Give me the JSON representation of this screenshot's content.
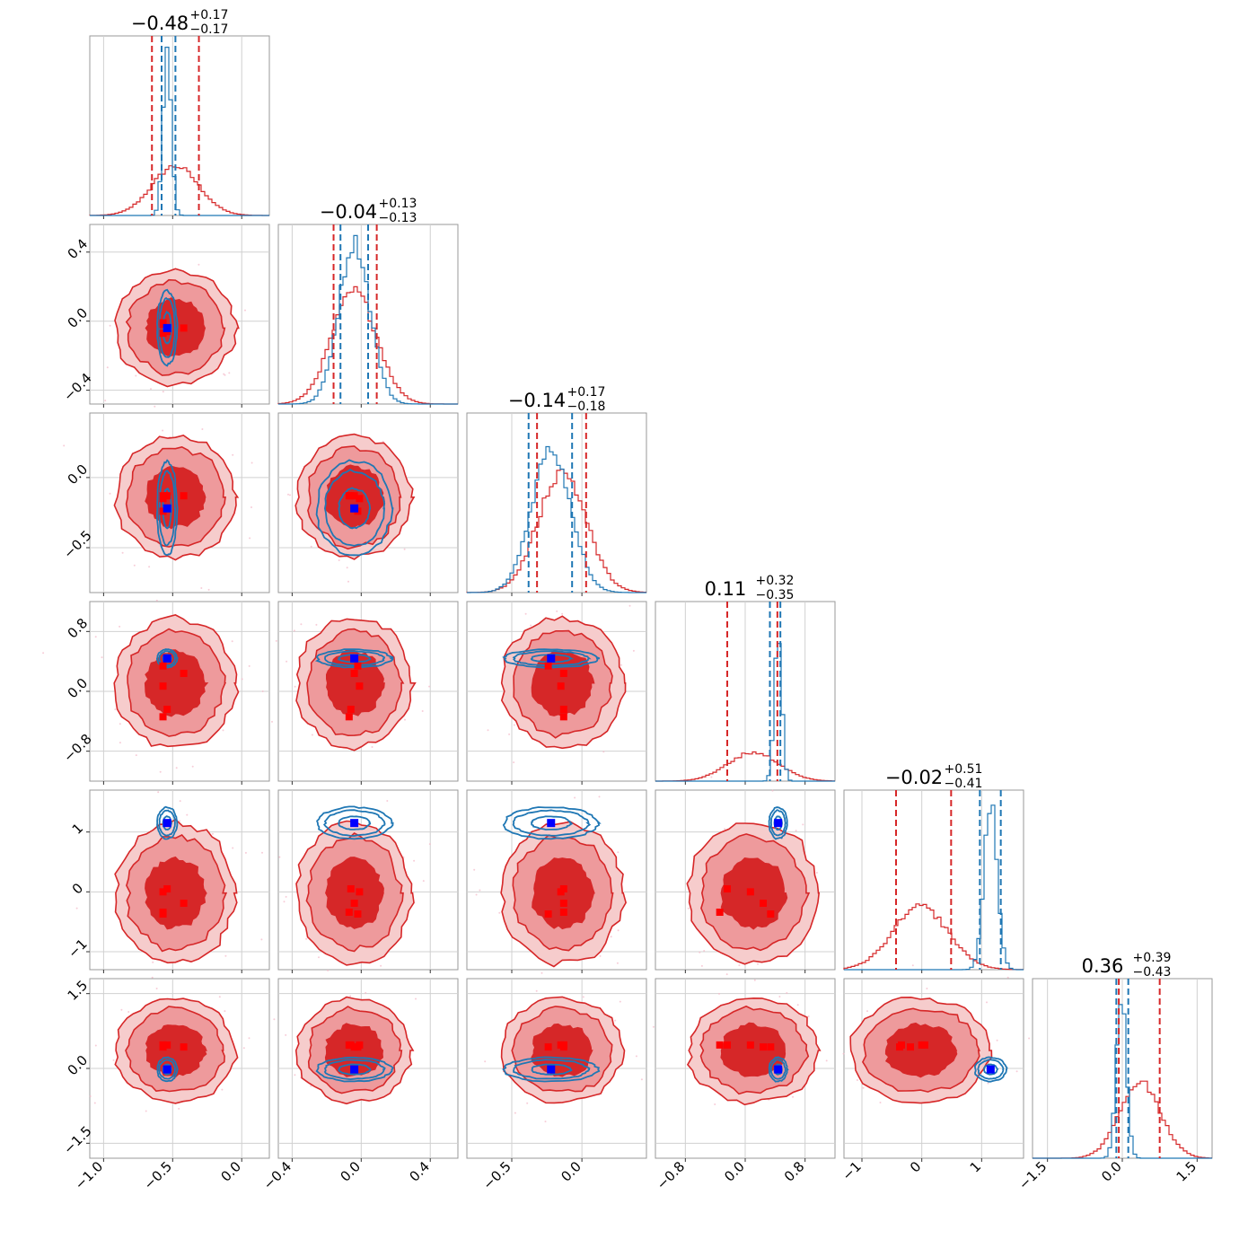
{
  "chart_data": {
    "type": "corner",
    "title": "",
    "n_params": 6,
    "grid": true,
    "colors": {
      "red": "#d62728",
      "red_light": "#ee9a9c",
      "blue": "#1f77b4",
      "marker_red": "#ff0000",
      "marker_blue": "#0000ff"
    },
    "params": [
      {
        "title_main": "−0.48",
        "title_plus": "+0.17",
        "title_minus": "−0.17",
        "range": [
          -1.1,
          0.2
        ],
        "ticks": [
          -1.0,
          -0.5,
          0.0
        ],
        "tick_labels": [
          "−1.0",
          "−0.5",
          "0.0"
        ],
        "red": {
          "mean": -0.48,
          "sd": 0.17
        },
        "blue": {
          "mean": -0.54,
          "sd": 0.03
        },
        "red_quantiles": [
          -0.65,
          -0.31
        ],
        "blue_quantiles": [
          -0.58,
          -0.48
        ]
      },
      {
        "title_main": "−0.04",
        "title_plus": "+0.13",
        "title_minus": "−0.13",
        "range": [
          -0.48,
          0.56
        ],
        "ticks": [
          -0.4,
          0.0,
          0.4
        ],
        "tick_labels": [
          "−0.4",
          "0.0",
          "0.4"
        ],
        "red": {
          "mean": -0.04,
          "sd": 0.13
        },
        "blue": {
          "mean": -0.04,
          "sd": 0.09
        },
        "red_quantiles": [
          -0.16,
          0.09
        ],
        "blue_quantiles": [
          -0.12,
          0.04
        ]
      },
      {
        "title_main": "−0.14",
        "title_plus": "+0.17",
        "title_minus": "−0.18",
        "range": [
          -0.82,
          0.46
        ],
        "ticks": [
          -0.5,
          0.0
        ],
        "tick_labels": [
          "−0.5",
          "0.0"
        ],
        "red": {
          "mean": -0.14,
          "sd": 0.17
        },
        "blue": {
          "mean": -0.22,
          "sd": 0.14
        },
        "red_quantiles": [
          -0.32,
          0.03
        ],
        "blue_quantiles": [
          -0.38,
          -0.07
        ]
      },
      {
        "title_main": "0.11",
        "title_plus": "+0.32",
        "title_minus": "−0.35",
        "range": [
          -1.2,
          1.2
        ],
        "ticks": [
          -0.8,
          0.0,
          0.8
        ],
        "tick_labels": [
          "−0.8",
          "0.0",
          "0.8"
        ],
        "red": {
          "mean": 0.11,
          "sd": 0.34
        },
        "blue": {
          "mean": 0.44,
          "sd": 0.05
        },
        "red_quantiles": [
          -0.24,
          0.43
        ],
        "blue_quantiles": [
          0.33,
          0.47
        ]
      },
      {
        "title_main": "−0.02",
        "title_plus": "+0.51",
        "title_minus": "−0.41",
        "range": [
          -1.3,
          1.7
        ],
        "ticks": [
          -1,
          0,
          1
        ],
        "tick_labels": [
          "−1",
          "0",
          "1"
        ],
        "red": {
          "mean": -0.02,
          "sd": 0.46
        },
        "blue": {
          "mean": 1.15,
          "sd": 0.11
        },
        "red_quantiles": [
          -0.43,
          0.49
        ],
        "blue_quantiles": [
          0.97,
          1.32
        ]
      },
      {
        "title_main": "0.36",
        "title_plus": "+0.39",
        "title_minus": "−0.43",
        "range": [
          -1.8,
          1.8
        ],
        "ticks": [
          -1.5,
          0.0,
          1.5
        ],
        "tick_labels": [
          "−1.5",
          "0.0",
          "1.5"
        ],
        "red": {
          "mean": 0.36,
          "sd": 0.41
        },
        "blue": {
          "mean": -0.02,
          "sd": 0.1
        },
        "red_quantiles": [
          -0.07,
          0.75
        ],
        "blue_quantiles": [
          -0.12,
          0.12
        ]
      }
    ],
    "red_markers": [
      [
        -0.57,
        -0.07,
        -0.13,
        -0.34,
        -0.34,
        0.47
      ],
      [
        -0.42,
        -0.04,
        -0.13,
        0.24,
        -0.19,
        0.43
      ],
      [
        -0.57,
        -0.01,
        -0.15,
        0.07,
        0.0,
        0.47
      ],
      [
        -0.57,
        -0.02,
        -0.24,
        0.34,
        -0.37,
        0.43
      ],
      [
        -0.54,
        -0.06,
        -0.13,
        -0.24,
        0.05,
        0.47
      ]
    ],
    "blue_marker": [
      -0.54,
      -0.04,
      -0.22,
      0.44,
      1.15,
      -0.02
    ]
  }
}
